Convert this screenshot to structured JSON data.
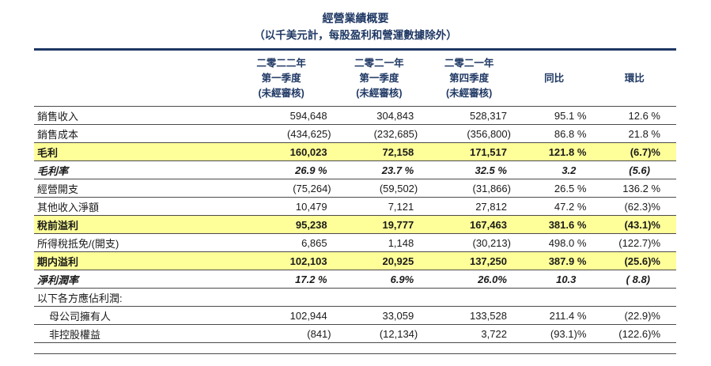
{
  "title": "經營業績概要",
  "subtitle": "（以千美元計，每股盈利和營運數據除外）",
  "colors": {
    "heading_navy": "#1f3864",
    "highlight_yellow": "#ffff99",
    "rule_gray": "#4a4a4a"
  },
  "table": {
    "columns": [
      {
        "id": "row-label",
        "lines": []
      },
      {
        "id": "q1-2022",
        "lines": [
          "二零二二年",
          "第一季度",
          "(未經審核)"
        ]
      },
      {
        "id": "q1-2021",
        "lines": [
          "二零二一年",
          "第一季度",
          "(未經審核)"
        ]
      },
      {
        "id": "q4-2021",
        "lines": [
          "二零二一年",
          "第四季度",
          "(未經審核)"
        ]
      },
      {
        "id": "yoy",
        "lines": [
          "同比"
        ]
      },
      {
        "id": "qoq",
        "lines": [
          "環比"
        ]
      }
    ],
    "rows": [
      {
        "label": "銷售收入",
        "style": "normal",
        "values": [
          "594,648",
          "304,843",
          "528,317",
          "95.1 %",
          "12.6 %"
        ]
      },
      {
        "label": "銷售成本",
        "style": "normal",
        "values": [
          "(434,625)",
          "(232,685)",
          "(356,800)",
          "86.8 %",
          "21.8 %"
        ]
      },
      {
        "label": "毛利",
        "style": "highlight",
        "values": [
          "160,023",
          "72,158",
          "171,517",
          "121.8 %",
          "(6.7)%"
        ]
      },
      {
        "label": "毛利率",
        "style": "rate",
        "values": [
          "26.9 %",
          "23.7 %",
          "32.5 %",
          "3.2",
          "(5.6)"
        ]
      },
      {
        "label": "經營開支",
        "style": "normal",
        "values": [
          "(75,264)",
          "(59,502)",
          "(31,866)",
          "26.5 %",
          "136.2 %"
        ]
      },
      {
        "label": "其他收入淨額",
        "style": "normal",
        "values": [
          "10,479",
          "7,121",
          "27,812",
          "47.2 %",
          "(62.3)%"
        ]
      },
      {
        "label": "稅前溢利",
        "style": "highlight",
        "values": [
          "95,238",
          "19,777",
          "167,463",
          "381.6 %",
          "(43.1)%"
        ]
      },
      {
        "label": "所得稅抵免/(開支)",
        "style": "normal",
        "values": [
          "6,865",
          "1,148",
          "(30,213)",
          "498.0 %",
          "(122.7)%"
        ]
      },
      {
        "label": "期内溢利",
        "style": "highlight",
        "values": [
          "102,103",
          "20,925",
          "137,250",
          "387.9 %",
          "(25.6)%"
        ]
      },
      {
        "label": "淨利潤率",
        "style": "rate",
        "values": [
          "17.2 %",
          "6.9%",
          "26.0%",
          "10.3",
          "( 8.8)"
        ]
      },
      {
        "label": "以下各方應佔利潤:",
        "style": "section",
        "values": [
          "",
          "",
          "",
          "",
          ""
        ]
      },
      {
        "label": "母公司擁有人",
        "style": "indent",
        "values": [
          "102,944",
          "33,059",
          "133,528",
          "211.4 %",
          "(22.9)%"
        ]
      },
      {
        "label": "非控股權益",
        "style": "indent",
        "values": [
          "(841)",
          "(12,134)",
          "3,722",
          "(93.1)%",
          "(122.6)%"
        ]
      }
    ]
  }
}
